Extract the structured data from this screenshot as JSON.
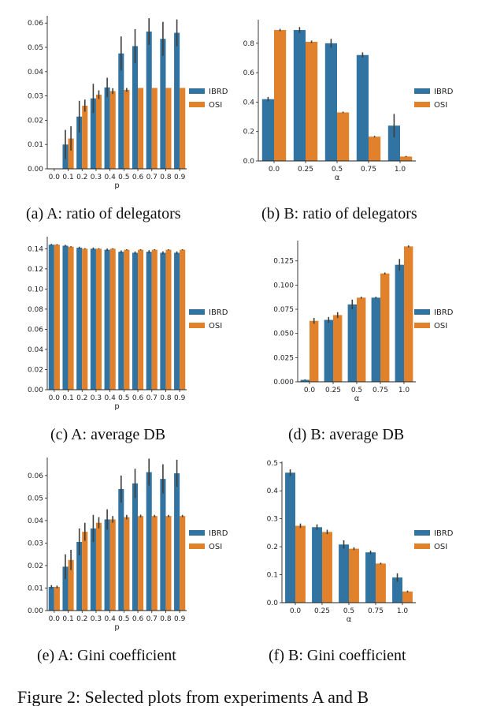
{
  "figure_caption": "Figure 2: Selected plots from experiments A and B",
  "legend": [
    "IBRD",
    "OSI"
  ],
  "colors": {
    "IBRD": "#3274a1",
    "OSI": "#e1812c",
    "err": "#3d3d3d"
  },
  "chart_data": [
    {
      "type": "bar",
      "caption": "(a) A: ratio of delegators",
      "xlabel": "p",
      "ylabel": "",
      "categories": [
        "0.0",
        "0.1",
        "0.2",
        "0.3",
        "0.4",
        "0.5",
        "0.6",
        "0.7",
        "0.8",
        "0.9"
      ],
      "ylim": [
        0,
        0.063
      ],
      "yticks": [
        0.0,
        0.01,
        0.02,
        0.03,
        0.04,
        0.05,
        0.06
      ],
      "ytick_labels": [
        "0.00",
        "0.01",
        "0.02",
        "0.03",
        "0.04",
        "0.05",
        "0.06"
      ],
      "series": [
        {
          "name": "IBRD",
          "values": [
            0,
            0.01,
            0.0215,
            0.029,
            0.0335,
            0.0475,
            0.0505,
            0.0565,
            0.0535,
            0.056
          ],
          "err": [
            0,
            0.006,
            0.0065,
            0.006,
            0.004,
            0.007,
            0.007,
            0.0055,
            0.007,
            0.0055
          ]
        },
        {
          "name": "OSI",
          "values": [
            0,
            0.0125,
            0.026,
            0.0305,
            0.032,
            0.0325,
            0.0333,
            0.0333,
            0.0333,
            0.0333
          ],
          "err": [
            0,
            0.005,
            0.0025,
            0.0018,
            0.0012,
            0.0008,
            0,
            0,
            0,
            0
          ]
        }
      ]
    },
    {
      "type": "bar",
      "caption": "(b) B: ratio of delegators",
      "xlabel": "α",
      "ylabel": "",
      "categories": [
        "0.0",
        "0.25",
        "0.5",
        "0.75",
        "1.0"
      ],
      "ylim": [
        0,
        0.96
      ],
      "yticks": [
        0.0,
        0.2,
        0.4,
        0.6,
        0.8
      ],
      "ytick_labels": [
        "0.0",
        "0.2",
        "0.4",
        "0.6",
        "0.8"
      ],
      "series": [
        {
          "name": "IBRD",
          "values": [
            0.42,
            0.89,
            0.8,
            0.72,
            0.24
          ],
          "err": [
            0.015,
            0.02,
            0.03,
            0.018,
            0.08
          ]
        },
        {
          "name": "OSI",
          "values": [
            0.89,
            0.81,
            0.33,
            0.165,
            0.03
          ],
          "err": [
            0.008,
            0.008,
            0.005,
            0.005,
            0.004
          ]
        }
      ]
    },
    {
      "type": "bar",
      "caption": "(c) A: average DB",
      "xlabel": "p",
      "ylabel": "",
      "categories": [
        "0.0",
        "0.1",
        "0.2",
        "0.3",
        "0.4",
        "0.5",
        "0.6",
        "0.7",
        "0.8",
        "0.9"
      ],
      "ylim": [
        0,
        0.152
      ],
      "yticks": [
        0.0,
        0.02,
        0.04,
        0.06,
        0.08,
        0.1,
        0.12,
        0.14
      ],
      "ytick_labels": [
        "0.00",
        "0.02",
        "0.04",
        "0.06",
        "0.08",
        "0.10",
        "0.12",
        "0.14"
      ],
      "series": [
        {
          "name": "IBRD",
          "values": [
            0.144,
            0.143,
            0.141,
            0.14,
            0.139,
            0.137,
            0.136,
            0.137,
            0.136,
            0.136
          ],
          "err": [
            0.0008,
            0.0009,
            0.001,
            0.0012,
            0.0012,
            0.0013,
            0.0013,
            0.0015,
            0.0014,
            0.0014
          ]
        },
        {
          "name": "OSI",
          "values": [
            0.144,
            0.142,
            0.14,
            0.14,
            0.14,
            0.139,
            0.139,
            0.139,
            0.139,
            0.139
          ],
          "err": [
            0.0005,
            0.0005,
            0.0005,
            0.0005,
            0.0005,
            0.0005,
            0.0005,
            0.0005,
            0.0005,
            0.0005
          ]
        }
      ]
    },
    {
      "type": "bar",
      "caption": "(d) B: average DB",
      "xlabel": "α",
      "ylabel": "",
      "categories": [
        "0.0",
        "0.25",
        "0.5",
        "0.75",
        "1.0"
      ],
      "ylim": [
        0,
        0.146
      ],
      "yticks": [
        0.0,
        0.025,
        0.05,
        0.075,
        0.1,
        0.125
      ],
      "ytick_labels": [
        "0.000",
        "0.025",
        "0.050",
        "0.075",
        "0.100",
        "0.125"
      ],
      "series": [
        {
          "name": "IBRD",
          "values": [
            0.002,
            0.064,
            0.08,
            0.087,
            0.121
          ],
          "err": [
            0.0005,
            0.003,
            0.005,
            0.001,
            0.006
          ]
        },
        {
          "name": "OSI",
          "values": [
            0.063,
            0.069,
            0.087,
            0.112,
            0.14
          ],
          "err": [
            0.003,
            0.003,
            0.001,
            0.001,
            0.001
          ]
        }
      ]
    },
    {
      "type": "bar",
      "caption": "(e) A: Gini coefficient",
      "xlabel": "p",
      "ylabel": "",
      "categories": [
        "0.0",
        "0.1",
        "0.2",
        "0.3",
        "0.4",
        "0.5",
        "0.6",
        "0.7",
        "0.8",
        "0.9"
      ],
      "ylim": [
        0,
        0.068
      ],
      "yticks": [
        0.0,
        0.01,
        0.02,
        0.03,
        0.04,
        0.05,
        0.06
      ],
      "ytick_labels": [
        "0.00",
        "0.01",
        "0.02",
        "0.03",
        "0.04",
        "0.05",
        "0.06"
      ],
      "series": [
        {
          "name": "IBRD",
          "values": [
            0.0105,
            0.0195,
            0.0305,
            0.0365,
            0.0405,
            0.054,
            0.0565,
            0.0615,
            0.0585,
            0.061
          ],
          "err": [
            0.0008,
            0.0055,
            0.006,
            0.006,
            0.0045,
            0.006,
            0.0065,
            0.006,
            0.0065,
            0.006
          ]
        },
        {
          "name": "OSI",
          "values": [
            0.0105,
            0.0225,
            0.035,
            0.039,
            0.0405,
            0.0415,
            0.042,
            0.042,
            0.042,
            0.042
          ],
          "err": [
            0.0006,
            0.0045,
            0.004,
            0.0025,
            0.0015,
            0.001,
            0.0006,
            0.0005,
            0.0005,
            0.0005
          ]
        }
      ]
    },
    {
      "type": "bar",
      "caption": "(f) B: Gini coefficient",
      "xlabel": "α",
      "ylabel": "",
      "categories": [
        "0.0",
        "0.25",
        "0.5",
        "0.75",
        "1.0"
      ],
      "ylim": [
        0,
        0.505
      ],
      "yticks": [
        0.0,
        0.1,
        0.2,
        0.3,
        0.4,
        0.5
      ],
      "ytick_labels": [
        "0.0",
        "0.1",
        "0.2",
        "0.3",
        "0.4",
        "0.5"
      ],
      "series": [
        {
          "name": "IBRD",
          "values": [
            0.465,
            0.27,
            0.208,
            0.18,
            0.09
          ],
          "err": [
            0.012,
            0.01,
            0.015,
            0.006,
            0.015
          ]
        },
        {
          "name": "OSI",
          "values": [
            0.275,
            0.253,
            0.193,
            0.14,
            0.04
          ],
          "err": [
            0.008,
            0.008,
            0.005,
            0.003,
            0.003
          ]
        }
      ]
    }
  ]
}
